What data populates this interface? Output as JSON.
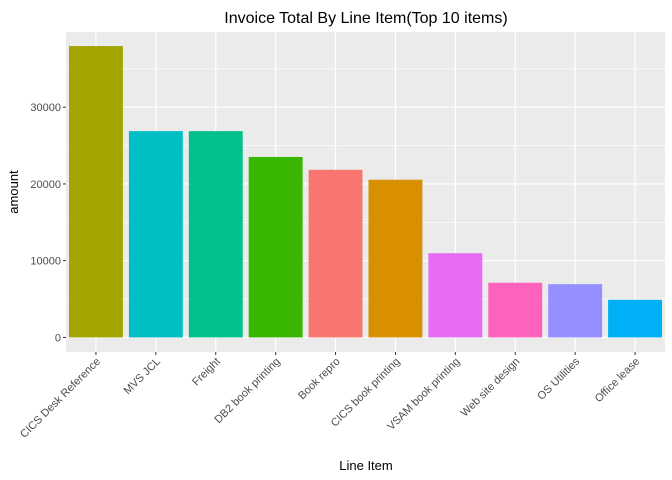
{
  "chart_data": {
    "type": "bar",
    "title": "Invoice Total By Line Item(Top 10 items)",
    "xlabel": "Line Item",
    "ylabel": "amount",
    "ylim": [
      -1900,
      39800
    ],
    "yticks": [
      0,
      10000,
      20000,
      30000
    ],
    "grid": true,
    "legend": "none",
    "panel_background": "#ebebeb",
    "grid_color": "#ffffff",
    "categories": [
      "CICS Desk Reference",
      "MVS JCL",
      "Freight",
      "DB2 book printing",
      "Book repro",
      "CICS book printing",
      "VSAM book printing",
      "Web site design",
      "OS Utilities",
      "Office lease"
    ],
    "values": [
      37966,
      26881,
      26881,
      23517,
      21842,
      20552,
      10976,
      7125,
      6940,
      4901
    ],
    "colors": [
      "#a3a500",
      "#00bfc4",
      "#00c08b",
      "#39b600",
      "#f8766d",
      "#d89000",
      "#e76bf3",
      "#ff62bc",
      "#9590ff",
      "#00b0f6"
    ]
  }
}
